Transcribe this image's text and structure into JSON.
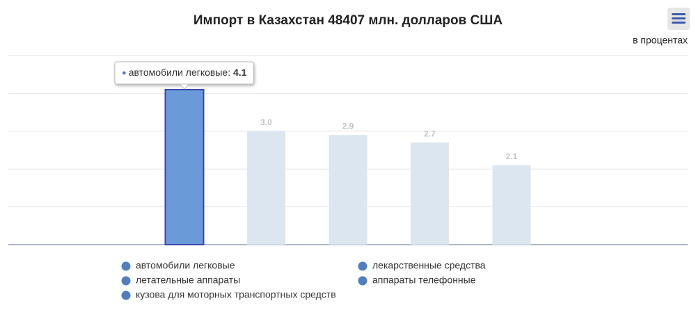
{
  "chart_data": {
    "type": "bar",
    "title": "Импорт в Казахстан 48407 млн. долларов США",
    "subtitle": "в процентах",
    "series": [
      {
        "name": "автомобили легковые",
        "color": "#dce6f1",
        "values": [
          4.1
        ]
      },
      {
        "name": "лекарственные средства",
        "color": "#dce6f1",
        "values": [
          3.0
        ],
        "value_labels": [
          "3.0"
        ]
      },
      {
        "name": "летательные аппараты",
        "color": "#dce6f1",
        "values": [
          2.9
        ],
        "value_labels": [
          "2.9"
        ]
      },
      {
        "name": "аппараты телефонные",
        "color": "#dce6f1",
        "values": [
          2.7
        ],
        "value_labels": [
          "2.7"
        ]
      },
      {
        "name": "кузова для моторных транспортных средств",
        "color": "#dce6f1",
        "values": [
          2.1
        ],
        "value_labels": [
          "2.1"
        ]
      }
    ],
    "legend_color": "#4f7fbf",
    "highlight": {
      "series": 0,
      "color": "#6a9bd8",
      "border": "#3846a8"
    },
    "ylim": [
      0,
      5
    ],
    "yticks": [
      0,
      1,
      2,
      3,
      4,
      5
    ],
    "grid": true
  }
}
